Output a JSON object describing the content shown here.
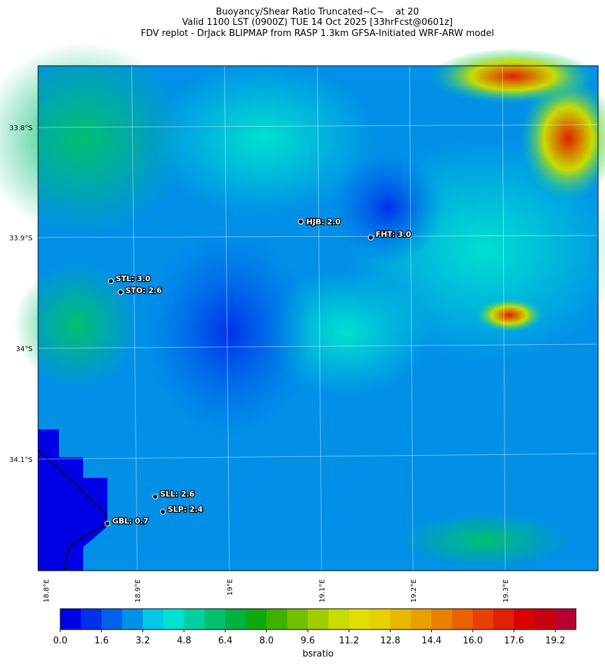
{
  "header": {
    "title_lines": [
      "Buoyancy/Shear Ratio Truncated~C~    at 20",
      "Valid 1100 LST (0900Z) TUE 14 Oct 2025 [33hrFcst@0601z]",
      "FDV replot - DrJack BLIPMAP from RASP 1.3km GFSA-Initiated WRF-ARW model"
    ]
  },
  "map": {
    "lat_labels": [
      "33.8°S",
      "33.9°S",
      "34°S",
      "34.1°S"
    ],
    "lon_labels": [
      "18.8°E",
      "18.9°E",
      "19°E",
      "19.1°E",
      "19.2°E",
      "19.3°E"
    ],
    "stations": [
      "HJB: 2.0",
      "FHT: 3.0",
      "STL: 3.0",
      "STO: 2.6",
      "SLL: 2.6",
      "SLP: 2.4",
      "GBL: 0.7"
    ]
  },
  "colorbar": {
    "label": "bsratio",
    "range": [
      0,
      20
    ],
    "colors": [
      "#0000e6",
      "#0030ea",
      "#0060ea",
      "#0090e8",
      "#00c8e8",
      "#00e0d0",
      "#00d0a0",
      "#00c070",
      "#00b040",
      "#10a810",
      "#40b000",
      "#70c000",
      "#a0cc00",
      "#c8dc00",
      "#e0e000",
      "#e8d000",
      "#e8b800",
      "#e8a000",
      "#e88000",
      "#e86000",
      "#e84000",
      "#e02000",
      "#d80000",
      "#c80010",
      "#b80030"
    ],
    "ticks": [
      {
        "value": 0,
        "label": "0.0"
      },
      1.6,
      3.2,
      4.8,
      6.4,
      {
        "value": 8,
        "label": "8.0"
      },
      9.6,
      11.2,
      12.8,
      14.4,
      {
        "value": 16,
        "label": "16.0"
      },
      17.6,
      19.2
    ]
  }
}
